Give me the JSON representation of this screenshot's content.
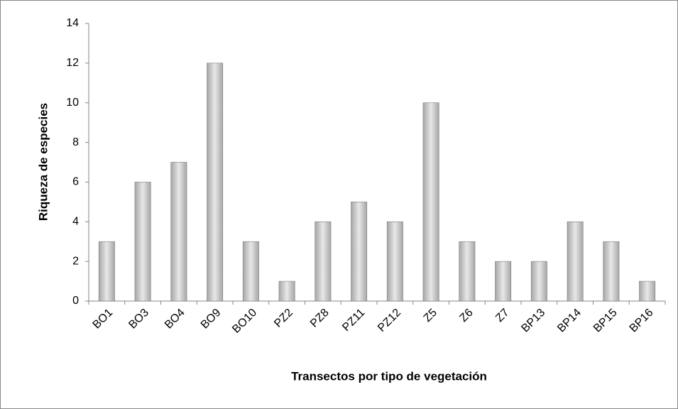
{
  "chart_data": {
    "type": "bar",
    "x_label": "Transectos por tipo de vegetación",
    "y_label": "Riqueza de especies",
    "categories": [
      "BO1",
      "BO3",
      "BO4",
      "BO9",
      "BO10",
      "PZ2",
      "PZ8",
      "PZ11",
      "PZ12",
      "Z5",
      "Z6",
      "Z7",
      "BP13",
      "BP14",
      "BP15",
      "BP16"
    ],
    "values": [
      3,
      6,
      7,
      12,
      3,
      1,
      4,
      5,
      4,
      10,
      3,
      2,
      2,
      4,
      3,
      1
    ],
    "color": "#a6a6a6",
    "ylim": [
      0,
      14
    ],
    "yticks": [
      0,
      2,
      4,
      6,
      8,
      10,
      12,
      14
    ],
    "grid": false
  }
}
